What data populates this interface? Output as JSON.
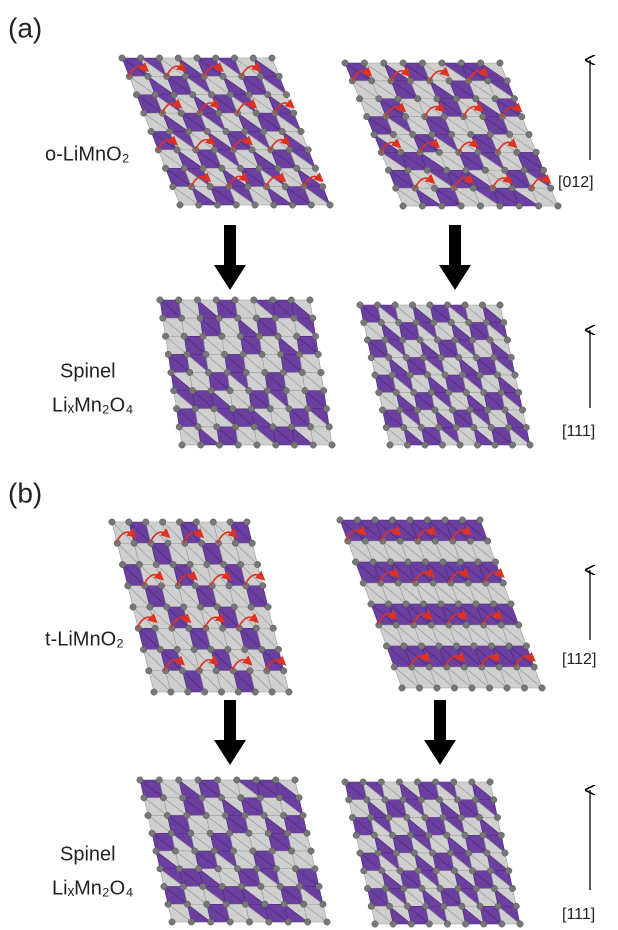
{
  "panels": [
    {
      "label": "(a)",
      "top": {
        "name": "o-LiMnO₂",
        "direction": "[012]"
      },
      "bottom": {
        "name_lines": [
          "Spinel",
          "LiₓMn₂O₄"
        ],
        "direction": "[111]"
      }
    },
    {
      "label": "(b)",
      "top": {
        "name": "t-LiMnO₂",
        "direction": "[112]"
      },
      "bottom": {
        "name_lines": [
          "Spinel",
          "LiₓMn₂O₄"
        ],
        "direction": "[111]"
      }
    }
  ]
}
